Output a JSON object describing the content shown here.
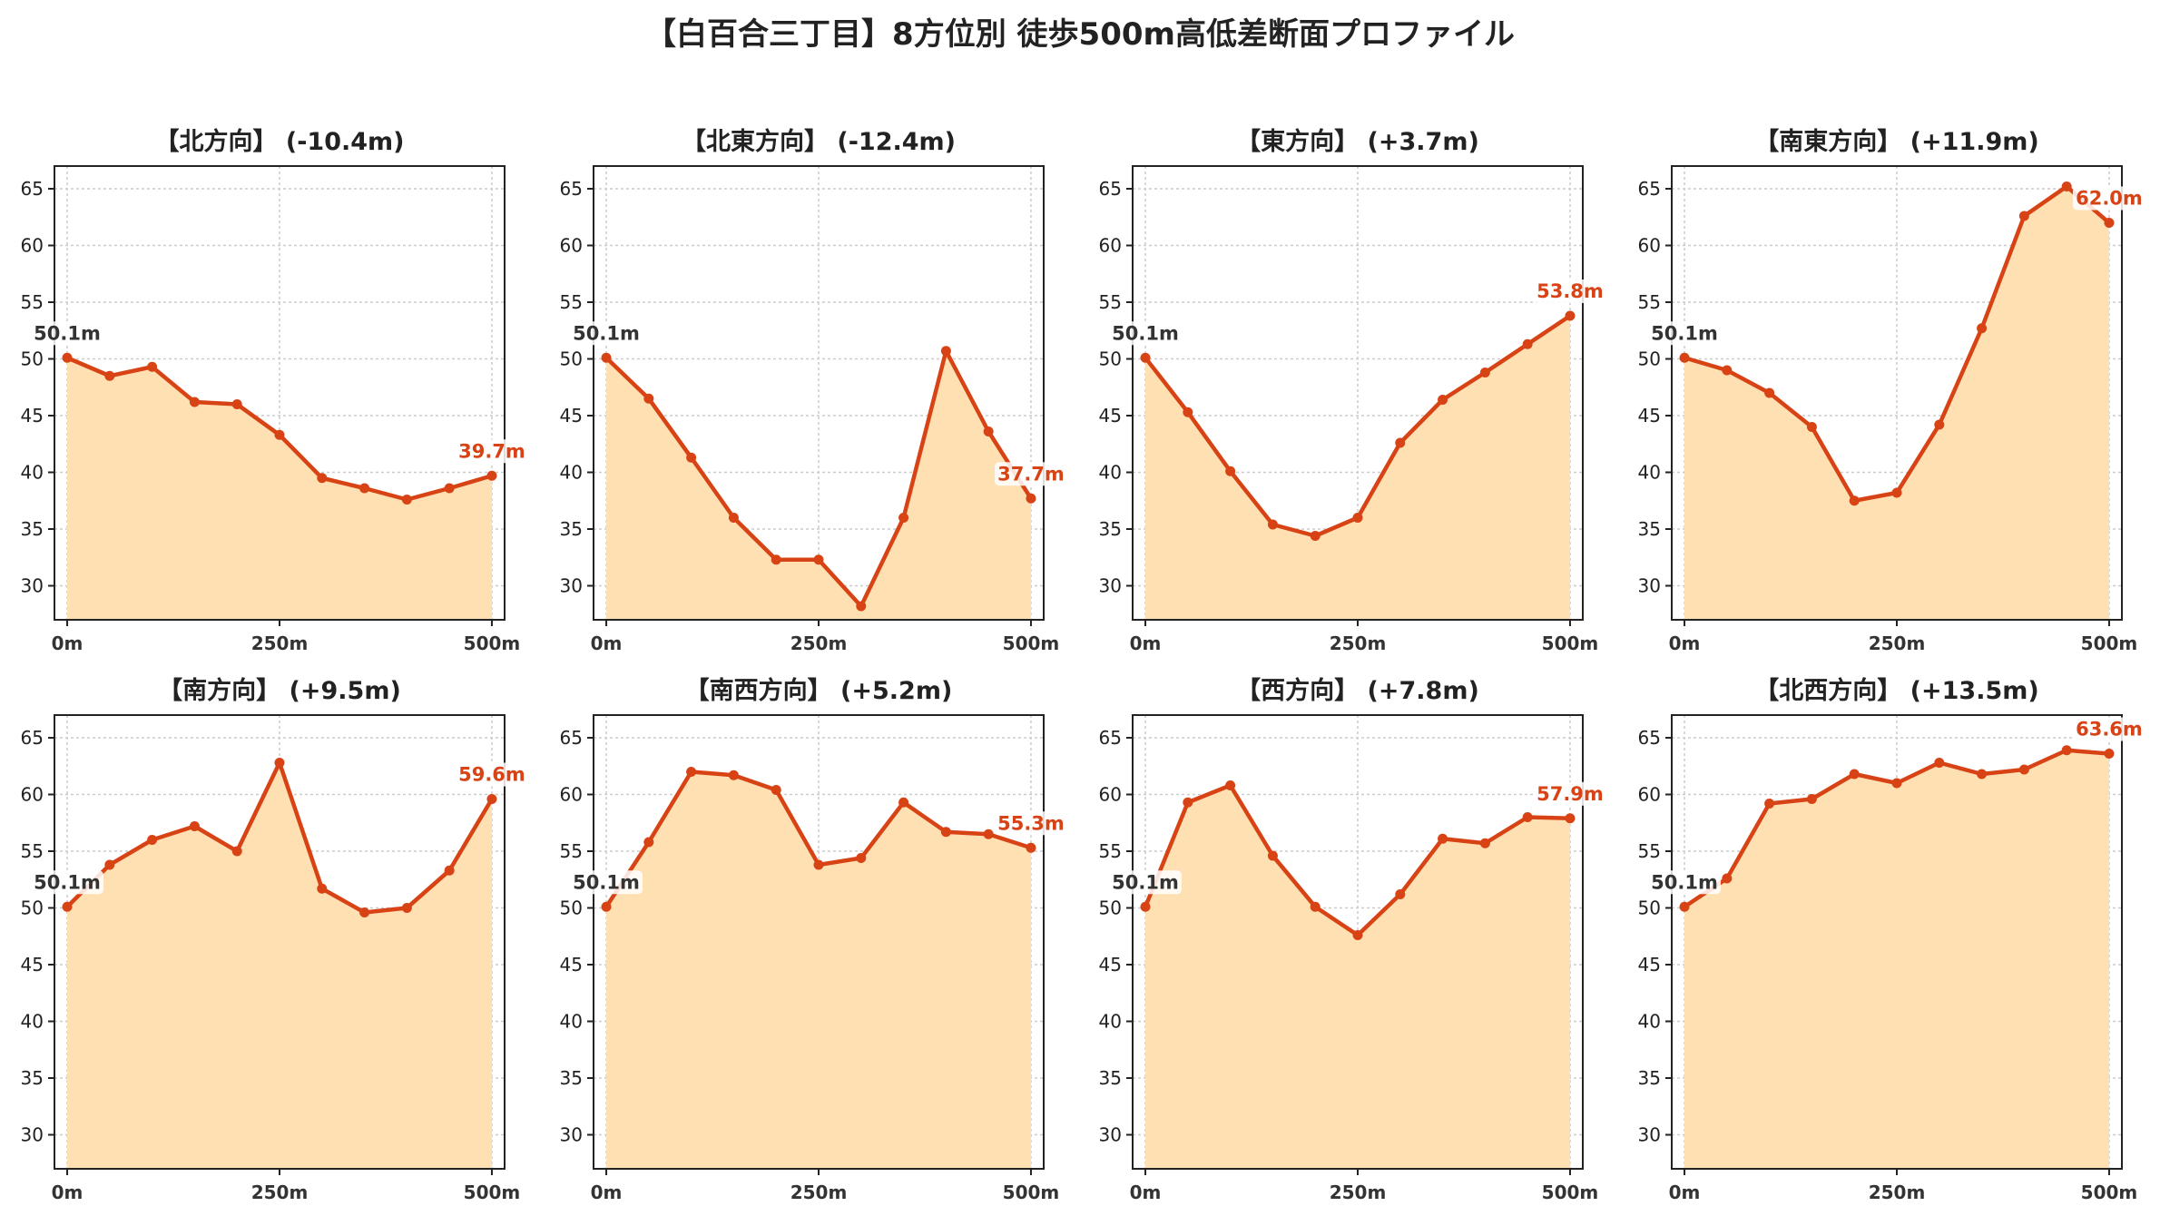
{
  "title": "【白百合三丁目】8方位別 徒歩500m高低差断面プロファイル",
  "colors": {
    "line": "#d84315",
    "fill": "#ffe0b2",
    "grid": "#cccccc",
    "start_label": "#333333",
    "end_label": "#d84315"
  },
  "chart_data": [
    {
      "type": "area",
      "title": "【北方向】 (-10.4m)",
      "x": [
        0,
        50,
        100,
        150,
        200,
        250,
        300,
        350,
        400,
        450,
        500
      ],
      "x_tick_labels": [
        "0m",
        "250m",
        "500m"
      ],
      "y_ticks": [
        30,
        35,
        40,
        45,
        50,
        55,
        60,
        65
      ],
      "ylim": [
        27,
        67
      ],
      "xlim": [
        -15,
        515
      ],
      "grid": true,
      "series": [
        {
          "values": [
            50.1,
            48.5,
            49.3,
            46.2,
            46.0,
            43.3,
            39.5,
            38.6,
            37.6,
            38.6,
            39.7
          ]
        }
      ],
      "start_label": "50.1m",
      "end_label": "39.7m"
    },
    {
      "type": "area",
      "title": "【北東方向】 (-12.4m)",
      "x": [
        0,
        50,
        100,
        150,
        200,
        250,
        300,
        350,
        400,
        450,
        500
      ],
      "x_tick_labels": [
        "0m",
        "250m",
        "500m"
      ],
      "y_ticks": [
        30,
        35,
        40,
        45,
        50,
        55,
        60,
        65
      ],
      "ylim": [
        27,
        67
      ],
      "xlim": [
        -15,
        515
      ],
      "grid": true,
      "series": [
        {
          "values": [
            50.1,
            46.5,
            41.3,
            36.0,
            32.3,
            32.3,
            28.2,
            36.0,
            50.7,
            43.6,
            37.7
          ]
        }
      ],
      "start_label": "50.1m",
      "end_label": "37.7m"
    },
    {
      "type": "area",
      "title": "【東方向】 (+3.7m)",
      "x": [
        0,
        50,
        100,
        150,
        200,
        250,
        300,
        350,
        400,
        450,
        500
      ],
      "x_tick_labels": [
        "0m",
        "250m",
        "500m"
      ],
      "y_ticks": [
        30,
        35,
        40,
        45,
        50,
        55,
        60,
        65
      ],
      "ylim": [
        27,
        67
      ],
      "xlim": [
        -15,
        515
      ],
      "grid": true,
      "series": [
        {
          "values": [
            50.1,
            45.3,
            40.1,
            35.4,
            34.4,
            36.0,
            42.6,
            46.4,
            48.8,
            51.3,
            53.8
          ]
        }
      ],
      "start_label": "50.1m",
      "end_label": "53.8m"
    },
    {
      "type": "area",
      "title": "【南東方向】 (+11.9m)",
      "x": [
        0,
        50,
        100,
        150,
        200,
        250,
        300,
        350,
        400,
        450,
        500
      ],
      "x_tick_labels": [
        "0m",
        "250m",
        "500m"
      ],
      "y_ticks": [
        30,
        35,
        40,
        45,
        50,
        55,
        60,
        65
      ],
      "ylim": [
        27,
        67
      ],
      "xlim": [
        -15,
        515
      ],
      "grid": true,
      "series": [
        {
          "values": [
            50.1,
            49.0,
            47.0,
            44.0,
            37.5,
            38.2,
            44.2,
            52.7,
            62.6,
            65.2,
            62.0
          ]
        }
      ],
      "start_label": "50.1m",
      "end_label": "62.0m"
    },
    {
      "type": "area",
      "title": "【南方向】 (+9.5m)",
      "x": [
        0,
        50,
        100,
        150,
        200,
        250,
        300,
        350,
        400,
        450,
        500
      ],
      "x_tick_labels": [
        "0m",
        "250m",
        "500m"
      ],
      "y_ticks": [
        30,
        35,
        40,
        45,
        50,
        55,
        60,
        65
      ],
      "ylim": [
        27,
        67
      ],
      "xlim": [
        -15,
        515
      ],
      "grid": true,
      "series": [
        {
          "values": [
            50.1,
            53.8,
            56.0,
            57.2,
            55.0,
            62.8,
            51.7,
            49.6,
            50.0,
            53.3,
            59.6
          ]
        }
      ],
      "start_label": "50.1m",
      "end_label": "59.6m"
    },
    {
      "type": "area",
      "title": "【南西方向】 (+5.2m)",
      "x": [
        0,
        50,
        100,
        150,
        200,
        250,
        300,
        350,
        400,
        450,
        500
      ],
      "x_tick_labels": [
        "0m",
        "250m",
        "500m"
      ],
      "y_ticks": [
        30,
        35,
        40,
        45,
        50,
        55,
        60,
        65
      ],
      "ylim": [
        27,
        67
      ],
      "xlim": [
        -15,
        515
      ],
      "grid": true,
      "series": [
        {
          "values": [
            50.1,
            55.8,
            62.0,
            61.7,
            60.4,
            53.8,
            54.4,
            59.3,
            56.7,
            56.5,
            55.3
          ]
        }
      ],
      "start_label": "50.1m",
      "end_label": "55.3m"
    },
    {
      "type": "area",
      "title": "【西方向】 (+7.8m)",
      "x": [
        0,
        50,
        100,
        150,
        200,
        250,
        300,
        350,
        400,
        450,
        500
      ],
      "x_tick_labels": [
        "0m",
        "250m",
        "500m"
      ],
      "y_ticks": [
        30,
        35,
        40,
        45,
        50,
        55,
        60,
        65
      ],
      "ylim": [
        27,
        67
      ],
      "xlim": [
        -15,
        515
      ],
      "grid": true,
      "series": [
        {
          "values": [
            50.1,
            59.3,
            60.8,
            54.6,
            50.1,
            47.6,
            51.2,
            56.1,
            55.7,
            58.0,
            57.9
          ]
        }
      ],
      "start_label": "50.1m",
      "end_label": "57.9m"
    },
    {
      "type": "area",
      "title": "【北西方向】 (+13.5m)",
      "x": [
        0,
        50,
        100,
        150,
        200,
        250,
        300,
        350,
        400,
        450,
        500
      ],
      "x_tick_labels": [
        "0m",
        "250m",
        "500m"
      ],
      "y_ticks": [
        30,
        35,
        40,
        45,
        50,
        55,
        60,
        65
      ],
      "ylim": [
        27,
        67
      ],
      "xlim": [
        -15,
        515
      ],
      "grid": true,
      "series": [
        {
          "values": [
            50.1,
            52.6,
            59.2,
            59.6,
            61.8,
            61.0,
            62.8,
            61.8,
            62.2,
            63.9,
            63.6
          ]
        }
      ],
      "start_label": "50.1m",
      "end_label": "63.6m"
    }
  ]
}
